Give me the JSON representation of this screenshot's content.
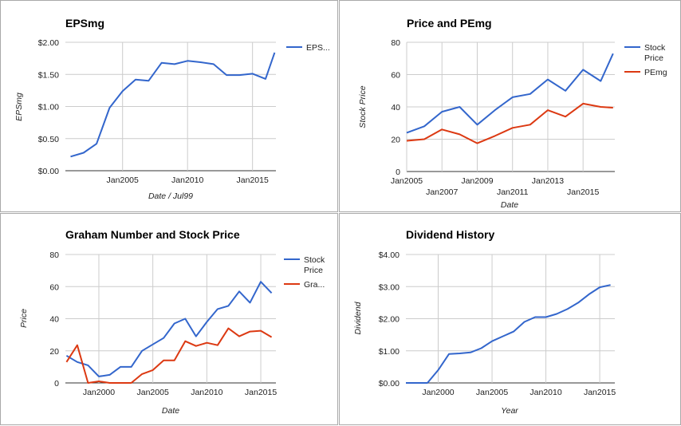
{
  "colors": {
    "blue": "#3366cc",
    "red": "#dc3912",
    "grid": "#cccccc",
    "baseline": "#333333"
  },
  "chart_data": [
    {
      "type": "line",
      "title": "EPSmg",
      "xlabel": "Date / Jul99",
      "ylabel": "EPSmg",
      "legend_position": "right",
      "x_ticks": [
        "Jan2005",
        "Jan2010",
        "Jan2015"
      ],
      "y_ticks": [
        "$0.00",
        "$0.50",
        "$1.00",
        "$1.50",
        "$2.00"
      ],
      "ylim": [
        0,
        2
      ],
      "grid": true,
      "series": [
        {
          "name": "EPS...",
          "color": "#3366cc",
          "x": [
            2001,
            2002,
            2003,
            2004,
            2005,
            2006,
            2007,
            2008,
            2009,
            2010,
            2011,
            2012,
            2013,
            2014,
            2015,
            2016,
            2016.7
          ],
          "values": [
            0.22,
            0.28,
            0.42,
            0.98,
            1.24,
            1.42,
            1.4,
            1.68,
            1.66,
            1.71,
            1.69,
            1.66,
            1.49,
            1.49,
            1.51,
            1.43,
            1.84
          ]
        }
      ]
    },
    {
      "type": "line",
      "title": "Price and PEmg",
      "xlabel": "Date",
      "ylabel": "Stock Price",
      "legend_position": "right",
      "x_ticks": [
        "Jan2005",
        "Jan2007",
        "Jan2009",
        "Jan2011",
        "Jan2013",
        "Jan2015"
      ],
      "y_ticks": [
        "0",
        "20",
        "40",
        "60",
        "80"
      ],
      "ylim": [
        0,
        80
      ],
      "grid": true,
      "series": [
        {
          "name": "Stock Price",
          "color": "#3366cc",
          "x": [
            2005,
            2006,
            2007,
            2008,
            2009,
            2010,
            2011,
            2012,
            2013,
            2014,
            2015,
            2016,
            2016.7
          ],
          "values": [
            24,
            28,
            37,
            40,
            29,
            38,
            46,
            48,
            57,
            50,
            63,
            56,
            73
          ]
        },
        {
          "name": "PEmg",
          "color": "#dc3912",
          "x": [
            2005,
            2006,
            2007,
            2008,
            2009,
            2010,
            2011,
            2012,
            2013,
            2014,
            2015,
            2016,
            2016.7
          ],
          "values": [
            19,
            20,
            26,
            23,
            17.5,
            22,
            27,
            29,
            38,
            34,
            42,
            40,
            39.5
          ]
        }
      ]
    },
    {
      "type": "line",
      "title": "Graham Number and Stock Price",
      "xlabel": "Date",
      "ylabel": "Price",
      "legend_position": "right",
      "x_ticks": [
        "Jan2000",
        "Jan2005",
        "Jan2010",
        "Jan2015"
      ],
      "y_ticks": [
        "0",
        "20",
        "40",
        "60",
        "80"
      ],
      "ylim": [
        0,
        80
      ],
      "grid": true,
      "series": [
        {
          "name": "Stock Price",
          "color": "#3366cc",
          "x": [
            1997,
            1998,
            1999,
            2000,
            2001,
            2002,
            2003,
            2004,
            2005,
            2006,
            2007,
            2008,
            2009,
            2010,
            2011,
            2012,
            2013,
            2014,
            2015,
            2016
          ],
          "values": [
            17,
            13,
            11,
            4,
            5,
            10,
            10,
            20,
            24,
            28,
            37,
            40,
            29,
            38,
            46,
            48,
            57,
            50,
            63,
            56
          ]
        },
        {
          "name": "Gra...",
          "color": "#dc3912",
          "x": [
            1997,
            1998,
            1999,
            2000,
            2001,
            2002,
            2003,
            2004,
            2005,
            2006,
            2007,
            2008,
            2009,
            2010,
            2011,
            2012,
            2013,
            2014,
            2015,
            2016
          ],
          "values": [
            13,
            23.5,
            0,
            1,
            0,
            0,
            0,
            5.5,
            8,
            14,
            14,
            26,
            23,
            25,
            23.5,
            34,
            29,
            32,
            32.5,
            28.5
          ]
        }
      ]
    },
    {
      "type": "line",
      "title": "Dividend History",
      "xlabel": "Year",
      "ylabel": "Dividend",
      "legend_position": "none",
      "x_ticks": [
        "Jan2000",
        "Jan2005",
        "Jan2010",
        "Jan2015"
      ],
      "y_ticks": [
        "$0.00",
        "$1.00",
        "$2.00",
        "$3.00",
        "$4.00"
      ],
      "ylim": [
        0,
        4
      ],
      "grid": true,
      "series": [
        {
          "name": "",
          "color": "#3366cc",
          "x": [
            1997,
            1998,
            1999,
            2000,
            2001,
            2002,
            2003,
            2004,
            2005,
            2006,
            2007,
            2008,
            2009,
            2010,
            2011,
            2012,
            2013,
            2014,
            2015,
            2016
          ],
          "values": [
            0,
            0,
            0,
            0.4,
            0.9,
            0.92,
            0.95,
            1.08,
            1.3,
            1.45,
            1.6,
            1.9,
            2.05,
            2.05,
            2.15,
            2.3,
            2.5,
            2.76,
            2.98,
            3.05
          ]
        }
      ]
    }
  ]
}
